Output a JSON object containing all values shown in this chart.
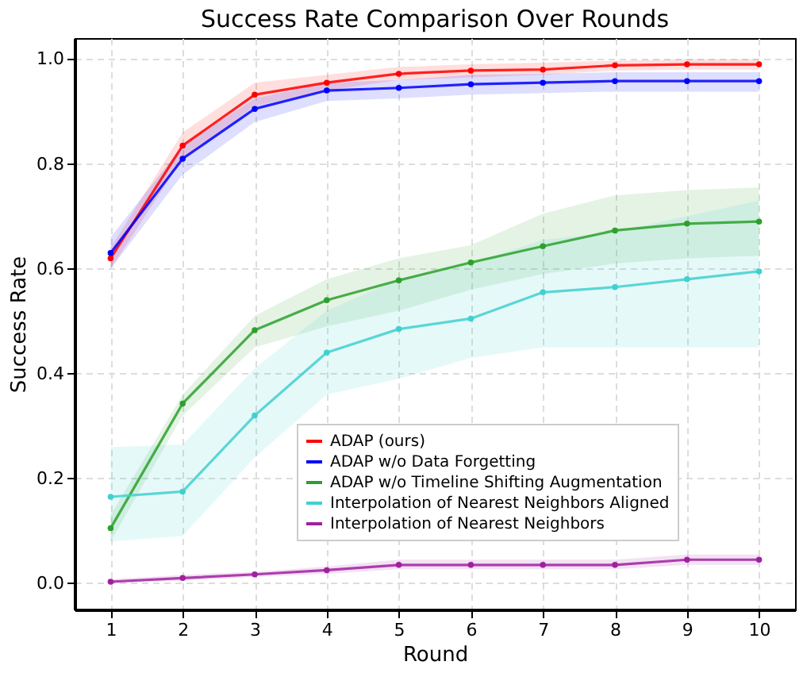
{
  "chart_data": {
    "type": "line",
    "title": "Success Rate Comparison Over Rounds",
    "xlabel": "Round",
    "ylabel": "Success Rate",
    "x": [
      1,
      2,
      3,
      4,
      5,
      6,
      7,
      8,
      9,
      10
    ],
    "xlim": [
      0.5,
      10.5
    ],
    "xticks": [
      1,
      2,
      3,
      4,
      5,
      6,
      7,
      8,
      9,
      10
    ],
    "ylim": [
      -0.05,
      1.04
    ],
    "yticks": [
      {
        "value": 0,
        "label": "0.0"
      },
      0.2,
      0.4,
      0.6,
      0.8,
      {
        "value": 1,
        "label": "1.0"
      }
    ],
    "grid": true,
    "legend": "bottom right",
    "marker": "circle",
    "line_style": "solid",
    "series": [
      {
        "name": "ADAP (ours)",
        "color": "#ff0000",
        "values": [
          0.62,
          0.835,
          0.932,
          0.955,
          0.972,
          0.978,
          0.98,
          0.988,
          0.99,
          0.99
        ],
        "lower": [
          0.6,
          0.81,
          0.91,
          0.94,
          0.96,
          0.965,
          0.97,
          0.978,
          0.98,
          0.98
        ],
        "upper": [
          0.64,
          0.86,
          0.955,
          0.97,
          0.985,
          0.99,
          0.993,
          0.997,
          1.0,
          1.0
        ]
      },
      {
        "name": "ADAP w/o Data Forgetting",
        "color": "#0000ff",
        "values": [
          0.63,
          0.81,
          0.905,
          0.94,
          0.945,
          0.952,
          0.955,
          0.958,
          0.958,
          0.958
        ],
        "lower": [
          0.6,
          0.78,
          0.88,
          0.92,
          0.925,
          0.932,
          0.935,
          0.938,
          0.938,
          0.938
        ],
        "upper": [
          0.66,
          0.835,
          0.925,
          0.955,
          0.96,
          0.97,
          0.972,
          0.975,
          0.975,
          0.975
        ]
      },
      {
        "name": "ADAP w/o Timeline Shifting Augmentation",
        "color": "#2ca02c",
        "values": [
          0.105,
          0.343,
          0.483,
          0.54,
          0.578,
          0.612,
          0.643,
          0.673,
          0.686,
          0.69
        ],
        "lower": [
          0.08,
          0.32,
          0.45,
          0.49,
          0.52,
          0.56,
          0.59,
          0.61,
          0.62,
          0.625
        ],
        "upper": [
          0.13,
          0.36,
          0.51,
          0.58,
          0.62,
          0.645,
          0.705,
          0.74,
          0.75,
          0.755
        ]
      },
      {
        "name": "Interpolation of Nearest Neighbors Aligned",
        "color": "#40d0d0",
        "values": [
          0.165,
          0.175,
          0.32,
          0.44,
          0.485,
          0.505,
          0.555,
          0.565,
          0.58,
          0.595
        ],
        "lower": [
          0.08,
          0.09,
          0.24,
          0.36,
          0.39,
          0.43,
          0.45,
          0.45,
          0.45,
          0.45
        ],
        "upper": [
          0.26,
          0.265,
          0.41,
          0.52,
          0.58,
          0.61,
          0.655,
          0.67,
          0.7,
          0.73
        ]
      },
      {
        "name": "Interpolation of Nearest Neighbors",
        "color": "#a020a0",
        "values": [
          0.003,
          0.01,
          0.017,
          0.025,
          0.035,
          0.035,
          0.035,
          0.035,
          0.045,
          0.045
        ],
        "lower": [
          0.0,
          0.005,
          0.012,
          0.018,
          0.027,
          0.027,
          0.027,
          0.027,
          0.035,
          0.035
        ],
        "upper": [
          0.008,
          0.016,
          0.022,
          0.032,
          0.045,
          0.045,
          0.045,
          0.045,
          0.055,
          0.055
        ]
      }
    ]
  }
}
